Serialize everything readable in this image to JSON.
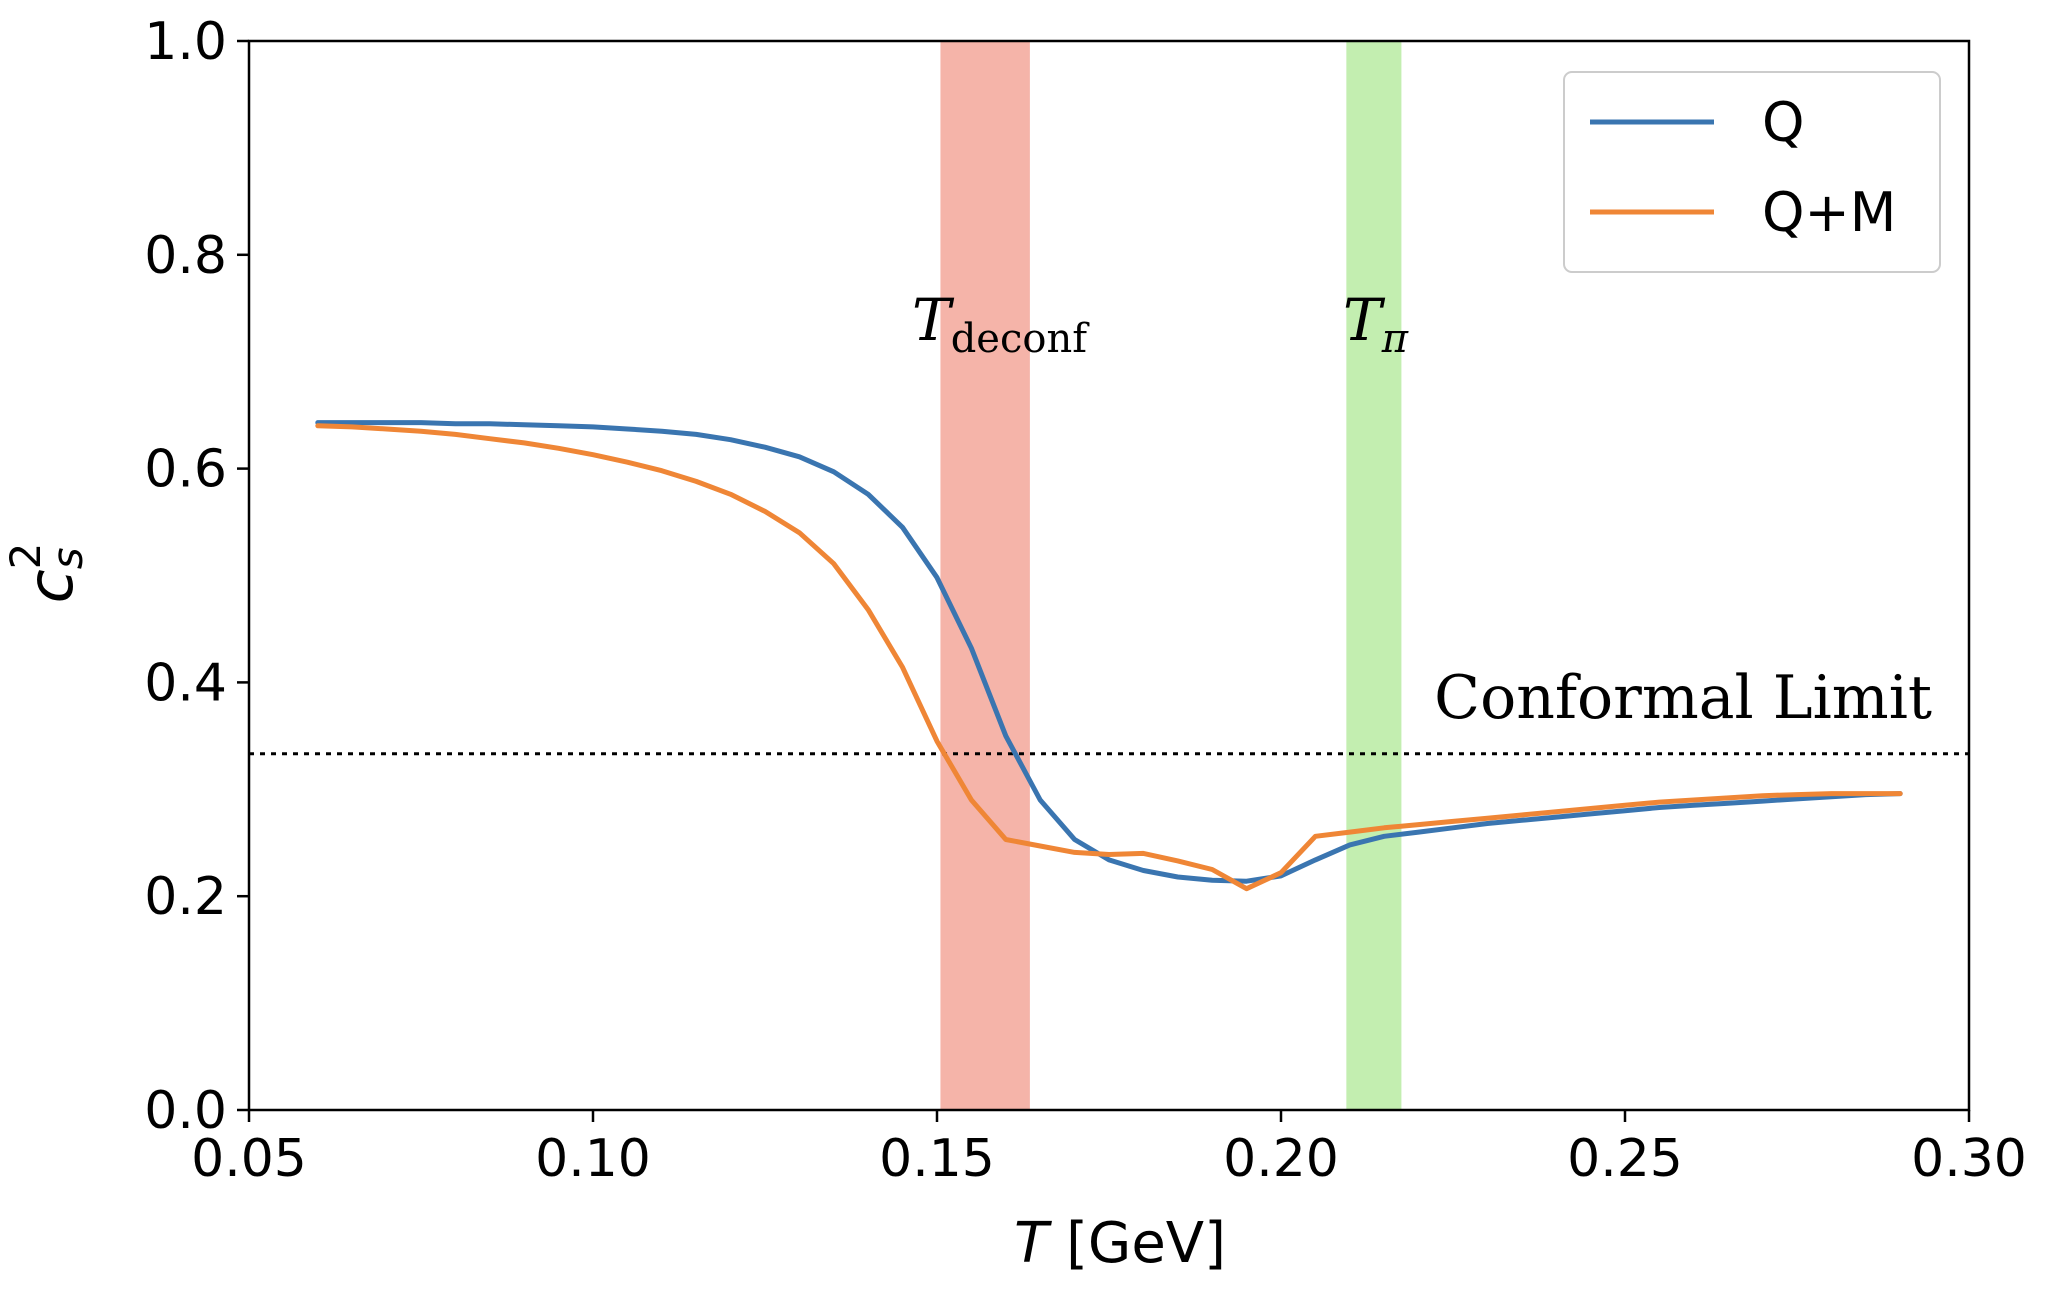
{
  "chart_data": {
    "type": "line",
    "title": "",
    "xlabel_italic": "T",
    "xlabel_rest": " [GeV]",
    "ylabel_base": "c",
    "ylabel_sub": "s",
    "ylabel_sup": "2",
    "xlim": [
      0.05,
      0.3
    ],
    "ylim": [
      0.0,
      1.0
    ],
    "xticks": [
      0.05,
      0.1,
      0.15,
      0.2,
      0.25,
      0.3
    ],
    "xtick_labels": [
      "0.05",
      "0.10",
      "0.15",
      "0.20",
      "0.25",
      "0.30"
    ],
    "yticks": [
      0.0,
      0.2,
      0.4,
      0.6,
      0.8,
      1.0
    ],
    "ytick_labels": [
      "0.0",
      "0.2",
      "0.4",
      "0.6",
      "0.8",
      "1.0"
    ],
    "grid": false,
    "legend_position": "top-right",
    "series": [
      {
        "name": "Q",
        "color": "#3a75b0",
        "x": [
          0.06,
          0.065,
          0.07,
          0.075,
          0.08,
          0.085,
          0.09,
          0.095,
          0.1,
          0.105,
          0.11,
          0.115,
          0.12,
          0.125,
          0.13,
          0.135,
          0.14,
          0.145,
          0.15,
          0.155,
          0.16,
          0.165,
          0.17,
          0.175,
          0.18,
          0.185,
          0.19,
          0.195,
          0.2,
          0.205,
          0.21,
          0.215,
          0.22,
          0.225,
          0.23,
          0.235,
          0.24,
          0.245,
          0.25,
          0.255,
          0.26,
          0.265,
          0.27,
          0.275,
          0.28,
          0.285,
          0.29
        ],
        "values": [
          0.643,
          0.643,
          0.643,
          0.643,
          0.642,
          0.642,
          0.641,
          0.64,
          0.639,
          0.637,
          0.635,
          0.632,
          0.627,
          0.62,
          0.611,
          0.597,
          0.576,
          0.545,
          0.498,
          0.432,
          0.35,
          0.29,
          0.253,
          0.234,
          0.224,
          0.218,
          0.215,
          0.214,
          0.219,
          0.234,
          0.248,
          0.256,
          0.26,
          0.264,
          0.268,
          0.271,
          0.274,
          0.277,
          0.28,
          0.283,
          0.285,
          0.287,
          0.289,
          0.291,
          0.293,
          0.295,
          0.296
        ]
      },
      {
        "name": "Q+M",
        "color": "#ef8636",
        "x": [
          0.06,
          0.065,
          0.07,
          0.075,
          0.08,
          0.085,
          0.09,
          0.095,
          0.1,
          0.105,
          0.11,
          0.115,
          0.12,
          0.125,
          0.13,
          0.135,
          0.14,
          0.145,
          0.15,
          0.155,
          0.16,
          0.165,
          0.17,
          0.175,
          0.18,
          0.185,
          0.19,
          0.195,
          0.2,
          0.205,
          0.21,
          0.215,
          0.22,
          0.225,
          0.23,
          0.235,
          0.24,
          0.245,
          0.25,
          0.255,
          0.26,
          0.265,
          0.27,
          0.275,
          0.28,
          0.285,
          0.29
        ],
        "values": [
          0.64,
          0.639,
          0.637,
          0.635,
          0.632,
          0.628,
          0.624,
          0.619,
          0.613,
          0.606,
          0.598,
          0.588,
          0.576,
          0.56,
          0.54,
          0.511,
          0.468,
          0.414,
          0.345,
          0.29,
          0.253,
          0.247,
          0.241,
          0.239,
          0.24,
          0.233,
          0.225,
          0.207,
          0.222,
          0.256,
          0.26,
          0.264,
          0.267,
          0.27,
          0.273,
          0.276,
          0.279,
          0.282,
          0.285,
          0.288,
          0.29,
          0.292,
          0.294,
          0.295,
          0.296,
          0.296,
          0.296
        ]
      }
    ],
    "bands": [
      {
        "label_main": "T",
        "label_sub": "deconf",
        "xmin": 0.1505,
        "xmax": 0.1635,
        "color": "#f5b4a9"
      },
      {
        "label_main": "T",
        "label_sub": "π",
        "xmin": 0.2095,
        "xmax": 0.2175,
        "color": "#c3eeb0"
      }
    ],
    "reference_line": {
      "y": 0.3333,
      "label": "Conformal Limit",
      "style": "dotted",
      "color": "#000000"
    }
  }
}
